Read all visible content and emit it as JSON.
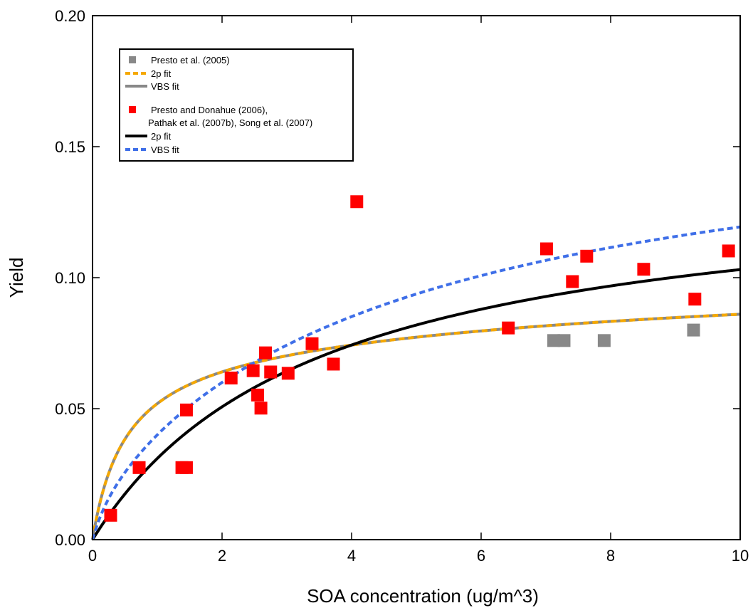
{
  "chart_data": {
    "type": "scatter",
    "xlabel": "SOA concentration (ug/m^3)",
    "ylabel": "Yield",
    "xlim": [
      0,
      10
    ],
    "ylim": [
      0,
      0.2
    ],
    "x_ticks": [
      0,
      2,
      4,
      6,
      8,
      10
    ],
    "y_ticks": [
      0.0,
      0.05,
      0.1,
      0.15,
      0.2
    ],
    "x_tick_labels": [
      "0",
      "2",
      "4",
      "6",
      "8",
      "10"
    ],
    "y_tick_labels": [
      "0.00",
      "0.05",
      "0.10",
      "0.15",
      "0.20"
    ],
    "grid": false,
    "legend_position": "top-left",
    "series": [
      {
        "name": "Presto et al. (2005)",
        "kind": "points",
        "marker": "square",
        "color": "#888888",
        "x": [
          7.12,
          7.28,
          7.9,
          9.28
        ],
        "y": [
          0.076,
          0.076,
          0.076,
          0.08
        ]
      },
      {
        "name": "2p fit",
        "kind": "line",
        "style": "dashed",
        "color": "#f5a800",
        "model": "two-product",
        "params": {
          "a1": 0.074,
          "k1": 2.0,
          "a2": 0.035,
          "k2": 0.08
        },
        "overlay_on": "VBS fit (gray)"
      },
      {
        "name": "VBS fit",
        "kind": "line",
        "style": "solid",
        "color": "#888888",
        "model": "two-product",
        "params": {
          "a1": 0.074,
          "k1": 2.0,
          "a2": 0.035,
          "k2": 0.08
        }
      },
      {
        "name": "Presto and Donahue (2006), Pathak et al. (2007b), Song et al. (2007)",
        "kind": "points",
        "marker": "square",
        "color": "#ff0000",
        "x": [
          0.28,
          0.72,
          1.38,
          1.45,
          1.45,
          2.14,
          2.48,
          2.55,
          2.6,
          2.67,
          2.75,
          3.02,
          3.39,
          3.72,
          4.08,
          6.42,
          7.01,
          7.41,
          7.63,
          8.51,
          9.3,
          9.82
        ],
        "y": [
          0.0093,
          0.0275,
          0.0275,
          0.0275,
          0.0495,
          0.0617,
          0.0645,
          0.0552,
          0.0502,
          0.0713,
          0.064,
          0.0635,
          0.0748,
          0.067,
          0.129,
          0.0808,
          0.111,
          0.0985,
          0.1082,
          0.1032,
          0.0918,
          0.1102
        ]
      },
      {
        "name": "2p fit",
        "kind": "line",
        "style": "solid",
        "color": "#000000",
        "model": "one-product",
        "params": {
          "a": 0.139,
          "k": 0.287
        }
      },
      {
        "name": "VBS fit",
        "kind": "line",
        "style": "dashed",
        "color": "#3f6fe8",
        "model": "two-product",
        "params": {
          "a1": 0.15,
          "k1": 0.2,
          "a2": 0.02,
          "k2": 3.0
        }
      }
    ],
    "legend": {
      "group1": [
        {
          "label": "Presto et al. (2005)",
          "marker": "square",
          "color": "#888888"
        },
        {
          "label": "2p fit",
          "line": "dashed",
          "color": "#f5a800"
        },
        {
          "label": "VBS fit",
          "line": "solid",
          "color": "#888888"
        }
      ],
      "group2": [
        {
          "label": "Presto and Donahue (2006),",
          "label2": "Pathak et al. (2007b), Song et al. (2007)",
          "marker": "square",
          "color": "#ff0000"
        },
        {
          "label": "2p fit",
          "line": "solid",
          "color": "#000000"
        },
        {
          "label": "VBS fit",
          "line": "dashed",
          "color": "#3f6fe8"
        }
      ]
    }
  }
}
